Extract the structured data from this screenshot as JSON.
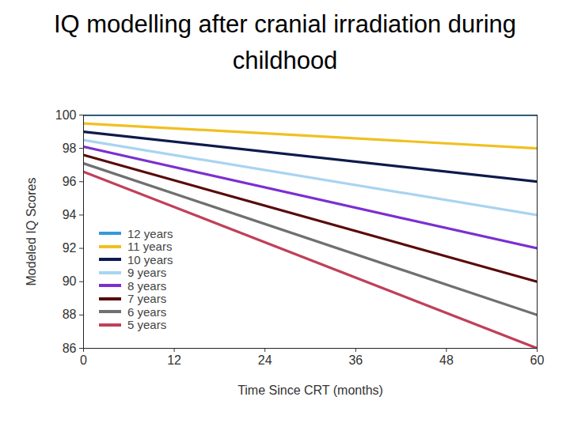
{
  "chart_data": {
    "type": "line",
    "title": "IQ modelling after cranial irradiation during childhood",
    "x_label": "Time Since CRT (months)",
    "y_label": "Modeled IQ Scores",
    "x": [
      0,
      60
    ],
    "series": [
      {
        "name": "12 years",
        "color": "#3399dd",
        "values": [
          100,
          100
        ]
      },
      {
        "name": "11 years",
        "color": "#f0c020",
        "values": [
          99.5,
          98
        ]
      },
      {
        "name": "10 years",
        "color": "#0d1a4d",
        "values": [
          99,
          96
        ]
      },
      {
        "name": "9 years",
        "color": "#a8d4f0",
        "values": [
          98.5,
          94
        ]
      },
      {
        "name": "8 years",
        "color": "#7b2fd0",
        "values": [
          98.1,
          92
        ]
      },
      {
        "name": "7 years",
        "color": "#5a0a0a",
        "values": [
          97.6,
          90
        ]
      },
      {
        "name": "6 years",
        "color": "#707070",
        "values": [
          97.1,
          88
        ]
      },
      {
        "name": "5 years",
        "color": "#c0405a",
        "values": [
          96.6,
          86
        ]
      }
    ],
    "xlim": [
      0,
      60
    ],
    "xticks": [
      0,
      12,
      24,
      36,
      48,
      60
    ],
    "ylim": [
      86,
      100
    ],
    "yticks": [
      86,
      88,
      90,
      92,
      94,
      96,
      98,
      100
    ],
    "grid": false,
    "legend": "lower left"
  }
}
